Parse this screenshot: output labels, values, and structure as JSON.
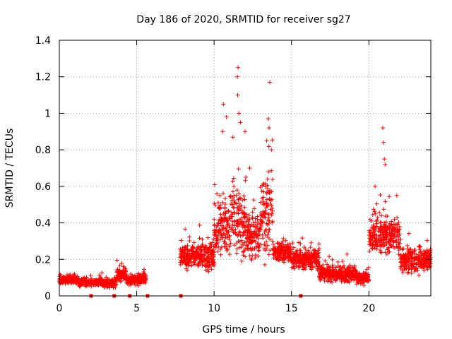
{
  "chart_data": {
    "type": "scatter",
    "title": "Day 186 of 2020, SRMTID for receiver sg27",
    "xlabel": "GPS time / hours",
    "ylabel": "SRMTID / TECUs",
    "xlim": [
      0,
      24
    ],
    "ylim": [
      0,
      1.4
    ],
    "x_ticks": [
      0,
      5,
      10,
      15,
      20
    ],
    "y_ticks": [
      0,
      0.2,
      0.4,
      0.6,
      0.8,
      1,
      1.2,
      1.4
    ],
    "x_tick_labels": [
      "0",
      "5",
      "10",
      "15",
      "20"
    ],
    "y_tick_labels": [
      "0",
      "0.2",
      "0.4",
      "0.6",
      "0.8",
      "1",
      "1.2",
      "1.4"
    ],
    "grid": true,
    "marker": "+",
    "color": "#ff0000",
    "series": [
      {
        "name": "SRMTID",
        "segments": [
          {
            "x_start": 0.0,
            "x_end": 1.2,
            "level": 0.09,
            "spread": 0.035
          },
          {
            "x_start": 1.2,
            "x_end": 2.8,
            "level": 0.075,
            "spread": 0.03
          },
          {
            "x_start": 2.8,
            "x_end": 3.7,
            "level": 0.07,
            "spread": 0.03
          },
          {
            "x_start": 3.7,
            "x_end": 4.3,
            "level": 0.12,
            "spread": 0.06
          },
          {
            "x_start": 4.3,
            "x_end": 5.6,
            "level": 0.09,
            "spread": 0.04
          },
          {
            "x_start": 7.8,
            "x_end": 9.2,
            "level": 0.22,
            "spread": 0.1
          },
          {
            "x_start": 9.2,
            "x_end": 10.0,
            "level": 0.22,
            "spread": 0.12
          },
          {
            "x_start": 10.0,
            "x_end": 11.0,
            "level": 0.38,
            "spread": 0.22
          },
          {
            "x_start": 11.0,
            "x_end": 12.0,
            "level": 0.42,
            "spread": 0.28
          },
          {
            "x_start": 12.0,
            "x_end": 13.0,
            "level": 0.33,
            "spread": 0.18
          },
          {
            "x_start": 13.0,
            "x_end": 13.8,
            "level": 0.45,
            "spread": 0.3
          },
          {
            "x_start": 13.8,
            "x_end": 15.0,
            "level": 0.24,
            "spread": 0.08
          },
          {
            "x_start": 15.0,
            "x_end": 16.8,
            "level": 0.2,
            "spread": 0.08
          },
          {
            "x_start": 16.8,
            "x_end": 19.2,
            "level": 0.12,
            "spread": 0.06
          },
          {
            "x_start": 19.2,
            "x_end": 20.0,
            "level": 0.1,
            "spread": 0.05
          },
          {
            "x_start": 20.0,
            "x_end": 22.0,
            "level": 0.33,
            "spread": 0.15
          },
          {
            "x_start": 22.0,
            "x_end": 24.0,
            "level": 0.2,
            "spread": 0.1
          }
        ],
        "notable_points": [
          {
            "x": 11.55,
            "y": 1.25
          },
          {
            "x": 11.5,
            "y": 1.2
          },
          {
            "x": 11.52,
            "y": 1.1
          },
          {
            "x": 13.6,
            "y": 1.17
          },
          {
            "x": 10.6,
            "y": 1.05
          },
          {
            "x": 10.8,
            "y": 0.98
          },
          {
            "x": 11.6,
            "y": 1.0
          },
          {
            "x": 11.7,
            "y": 0.95
          },
          {
            "x": 13.5,
            "y": 0.97
          },
          {
            "x": 13.55,
            "y": 0.92
          },
          {
            "x": 12.0,
            "y": 0.9
          },
          {
            "x": 10.55,
            "y": 0.9
          },
          {
            "x": 13.4,
            "y": 0.85
          },
          {
            "x": 13.7,
            "y": 0.8
          },
          {
            "x": 20.9,
            "y": 0.92
          },
          {
            "x": 20.95,
            "y": 0.84
          },
          {
            "x": 21.0,
            "y": 0.75
          },
          {
            "x": 21.05,
            "y": 0.72
          },
          {
            "x": 20.4,
            "y": 0.6
          },
          {
            "x": 21.8,
            "y": 0.55
          },
          {
            "x": 12.3,
            "y": 0.7
          },
          {
            "x": 12.05,
            "y": 0.65
          }
        ],
        "near_zero_markers_x": [
          2.05,
          3.55,
          4.55,
          5.7,
          7.85,
          15.6
        ]
      }
    ]
  }
}
